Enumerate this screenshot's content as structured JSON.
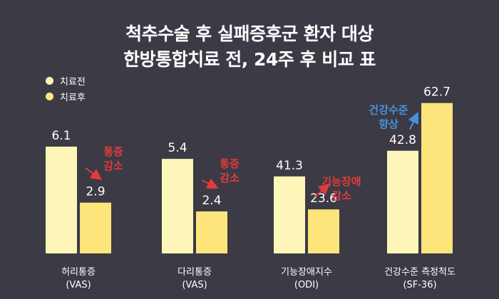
{
  "title_line1": "척추수술 후 실패증후군 환자 대상",
  "title_line2": "한방통합치료 전, 24주 후 비교 표",
  "colors": {
    "background": "#3b3a45",
    "before": "#fdf6b8",
    "after": "#fde57b",
    "decrease": "#e23b3b",
    "improve": "#4a90d9"
  },
  "chart_data": {
    "type": "bar",
    "title": "척추수술 후 실패증후군 환자 대상 한방통합치료 전, 24주 후 비교 표",
    "categories": [
      [
        "허리통증",
        "(VAS)"
      ],
      [
        "다리통증",
        "(VAS)"
      ],
      [
        "기능장애지수",
        "(ODI)"
      ],
      [
        "건강수준 측정척도",
        "(SF-36)"
      ]
    ],
    "series": [
      {
        "name": "치료전",
        "values": [
          6.1,
          5.4,
          41.3,
          42.8
        ]
      },
      {
        "name": "치료후",
        "values": [
          2.9,
          2.4,
          23.6,
          62.7
        ]
      }
    ],
    "value_labels": [
      [
        "6.1",
        "2.9"
      ],
      [
        "5.4",
        "2.4"
      ],
      [
        "41.3",
        "23.6"
      ],
      [
        "42.8",
        "62.7"
      ]
    ],
    "annotations": [
      {
        "lines": [
          "통증",
          "감소"
        ],
        "kind": "decrease"
      },
      {
        "lines": [
          "통증",
          "감소"
        ],
        "kind": "decrease"
      },
      {
        "lines": [
          "기능장애",
          "감소"
        ],
        "kind": "decrease"
      },
      {
        "lines": [
          "건강수준",
          "향상"
        ],
        "kind": "improve"
      }
    ],
    "legend_position": "top-left",
    "grid": false
  }
}
